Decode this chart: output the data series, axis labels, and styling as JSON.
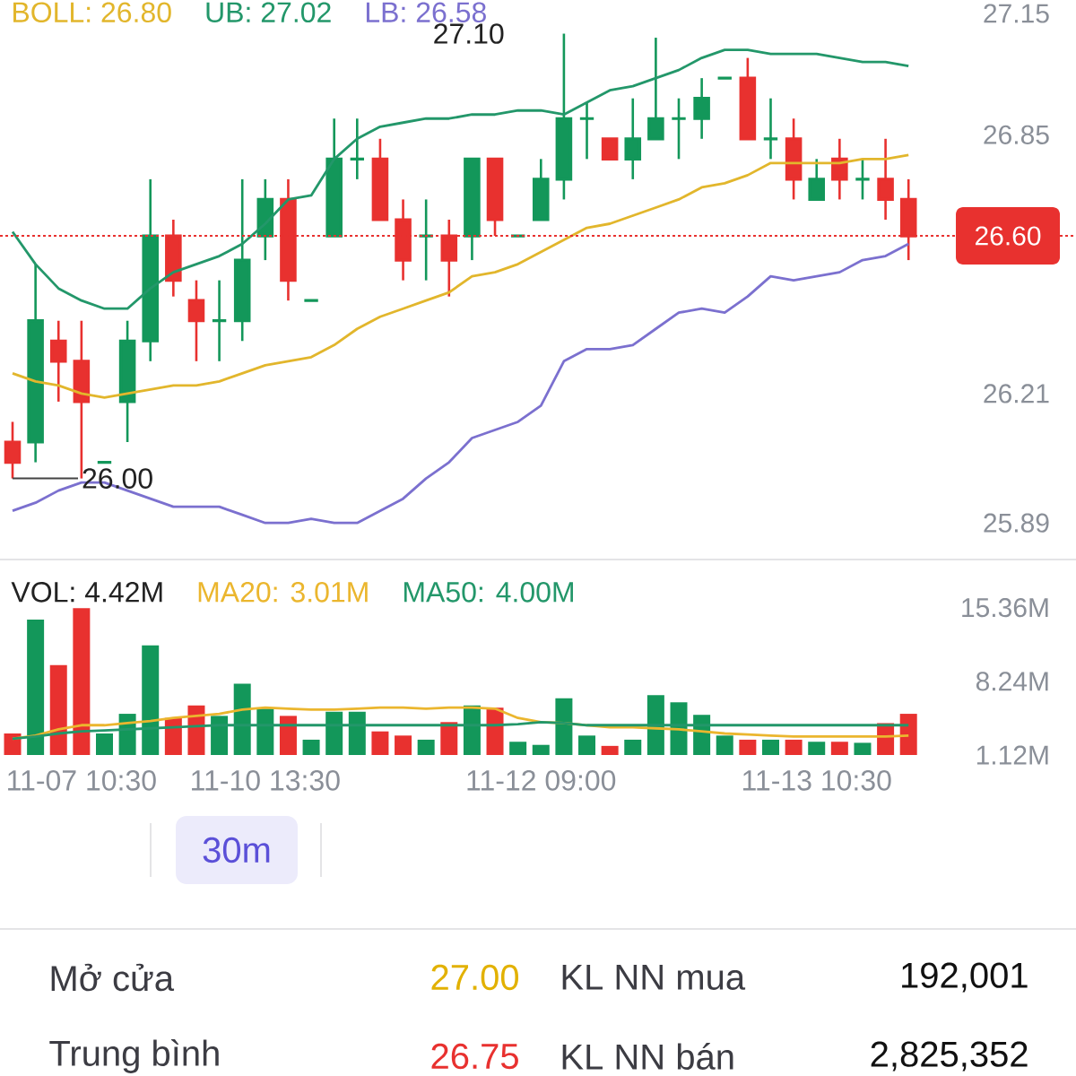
{
  "chart_data": [
    {
      "type": "candlestick",
      "tick_labels": "y",
      "legend": "top left",
      "categories": [
        null,
        null,
        null,
        null,
        null,
        null,
        null,
        null,
        null,
        null,
        null,
        null,
        null,
        null,
        null,
        null,
        null,
        null,
        null,
        null,
        null,
        null,
        null,
        null,
        null,
        null,
        null,
        null,
        null,
        null,
        null,
        null,
        null,
        null,
        null,
        null,
        null,
        null,
        null,
        null
      ],
      "ohlc": [
        [
          26.09,
          26.14,
          26.0,
          26.04
        ],
        [
          26.09,
          26.53,
          26.04,
          26.39
        ],
        [
          26.34,
          26.39,
          26.19,
          26.29
        ],
        [
          26.29,
          26.39,
          26.0,
          26.19
        ],
        [
          26.04,
          26.04,
          26.04,
          26.04
        ],
        [
          26.19,
          26.39,
          26.09,
          26.34
        ],
        [
          26.34,
          26.74,
          26.29,
          26.6
        ],
        [
          26.6,
          26.64,
          26.45,
          26.49
        ],
        [
          26.44,
          26.49,
          26.29,
          26.39
        ],
        [
          26.39,
          26.49,
          26.29,
          26.39
        ],
        [
          26.39,
          26.74,
          26.34,
          26.54
        ],
        [
          26.6,
          26.74,
          26.54,
          26.69
        ],
        [
          26.69,
          26.74,
          26.44,
          26.49
        ],
        [
          26.44,
          26.44,
          26.44,
          26.44
        ],
        [
          26.6,
          26.89,
          26.6,
          26.79
        ],
        [
          26.79,
          26.89,
          26.74,
          26.79
        ],
        [
          26.79,
          26.84,
          26.64,
          26.64
        ],
        [
          26.64,
          26.69,
          26.49,
          26.54
        ],
        [
          26.6,
          26.69,
          26.49,
          26.6
        ],
        [
          26.6,
          26.64,
          26.45,
          26.54
        ],
        [
          26.6,
          26.79,
          26.54,
          26.79
        ],
        [
          26.79,
          26.79,
          26.6,
          26.64
        ],
        [
          26.6,
          26.6,
          26.6,
          26.6
        ],
        [
          26.64,
          26.79,
          26.64,
          26.74
        ],
        [
          26.74,
          27.1,
          26.69,
          26.89
        ],
        [
          26.89,
          26.93,
          26.79,
          26.89
        ],
        [
          26.84,
          26.84,
          26.79,
          26.79
        ],
        [
          26.79,
          26.94,
          26.74,
          26.84
        ],
        [
          26.84,
          27.09,
          26.84,
          26.89
        ],
        [
          26.89,
          26.94,
          26.79,
          26.89
        ],
        [
          26.89,
          26.99,
          26.84,
          26.94
        ],
        [
          26.99,
          26.99,
          26.99,
          26.99
        ],
        [
          26.99,
          27.04,
          26.84,
          26.84
        ],
        [
          26.84,
          26.94,
          26.79,
          26.84
        ],
        [
          26.84,
          26.89,
          26.69,
          26.74
        ],
        [
          26.69,
          26.79,
          26.69,
          26.74
        ],
        [
          26.79,
          26.84,
          26.69,
          26.74
        ],
        [
          26.74,
          26.79,
          26.69,
          26.74
        ],
        [
          26.74,
          26.84,
          26.64,
          26.69
        ],
        [
          26.69,
          26.74,
          26.54,
          26.6
        ]
      ],
      "colors": [
        "#e8312f",
        "#13975a",
        "#e8312f",
        "#e8312f",
        "#13975a",
        "#13975a",
        "#13975a",
        "#e8312f",
        "#e8312f",
        "#13975a",
        "#13975a",
        "#13975a",
        "#e8312f",
        "#13975a",
        "#13975a",
        "#13975a",
        "#e8312f",
        "#e8312f",
        "#13975a",
        "#e8312f",
        "#13975a",
        "#e8312f",
        "#13975a",
        "#13975a",
        "#13975a",
        "#13975a",
        "#e8312f",
        "#13975a",
        "#13975a",
        "#13975a",
        "#13975a",
        "#13975a",
        "#e8312f",
        "#13975a",
        "#e8312f",
        "#13975a",
        "#e8312f",
        "#13975a",
        "#e8312f",
        "#e8312f"
      ],
      "series": [
        {
          "type": "line",
          "name": "BOLL: 26.80",
          "color": "#e2b62c",
          "values": [
            26.26,
            26.24,
            26.23,
            26.21,
            26.2,
            26.21,
            26.22,
            26.23,
            26.23,
            26.24,
            26.26,
            26.28,
            26.29,
            26.3,
            26.33,
            26.37,
            26.4,
            26.42,
            26.44,
            26.46,
            26.5,
            26.51,
            26.53,
            26.56,
            26.59,
            26.62,
            26.63,
            26.65,
            26.67,
            26.69,
            26.72,
            26.73,
            26.75,
            26.78,
            26.78,
            26.78,
            26.78,
            26.79,
            26.79,
            26.8
          ]
        },
        {
          "type": "line",
          "name": "UB: 27.02",
          "color": "#23976a",
          "values": [
            26.61,
            26.53,
            26.47,
            26.44,
            26.42,
            26.42,
            26.47,
            26.51,
            26.53,
            26.55,
            26.58,
            26.63,
            26.69,
            26.7,
            26.79,
            26.84,
            26.87,
            26.88,
            26.89,
            26.89,
            26.9,
            26.9,
            26.91,
            26.91,
            26.9,
            26.93,
            26.96,
            26.97,
            26.99,
            27.01,
            27.04,
            27.06,
            27.06,
            27.05,
            27.05,
            27.05,
            27.04,
            27.03,
            27.03,
            27.02
          ]
        },
        {
          "type": "line",
          "name": "LB: 26.58",
          "color": "#7b70cf",
          "values": [
            25.92,
            25.94,
            25.97,
            25.99,
            25.99,
            25.97,
            25.95,
            25.93,
            25.93,
            25.93,
            25.91,
            25.89,
            25.89,
            25.9,
            25.89,
            25.89,
            25.92,
            25.95,
            26.0,
            26.04,
            26.1,
            26.12,
            26.14,
            26.18,
            26.29,
            26.32,
            26.32,
            26.33,
            26.37,
            26.41,
            26.42,
            26.41,
            26.45,
            26.5,
            26.49,
            26.5,
            26.51,
            26.54,
            26.55,
            26.58
          ]
        }
      ],
      "ylim": [
        25.89,
        27.15
      ],
      "yticks": [
        27.15,
        26.85,
        26.21,
        25.89
      ],
      "ref_lines": [
        {
          "axis": "y",
          "value": 26.6,
          "color": "#e8312f",
          "line_style": "dotted"
        }
      ],
      "annotations": [
        "27.10",
        {
          "text": "26.00",
          "y": 26.0
        },
        {
          "text": "26.60",
          "y": 26.6
        }
      ]
    },
    {
      "type": "bar",
      "legend": "top left",
      "categories": [
        null,
        null,
        null,
        "11-07 10:30",
        null,
        null,
        null,
        null,
        null,
        null,
        null,
        "11-10 13:30",
        null,
        null,
        null,
        null,
        null,
        null,
        null,
        null,
        null,
        null,
        null,
        "11-12 09:00",
        null,
        null,
        null,
        null,
        null,
        null,
        null,
        null,
        null,
        null,
        null,
        "11-13 10:30",
        null,
        null,
        null,
        null
      ],
      "series": [
        {
          "name": "VOL: 4.42M",
          "colors": [
            "#e8312f",
            "#13975a",
            "#e8312f",
            "#e8312f",
            "#13975a",
            "#13975a",
            "#13975a",
            "#e8312f",
            "#e8312f",
            "#13975a",
            "#13975a",
            "#13975a",
            "#e8312f",
            "#13975a",
            "#13975a",
            "#13975a",
            "#e8312f",
            "#e8312f",
            "#13975a",
            "#e8312f",
            "#13975a",
            "#e8312f",
            "#13975a",
            "#13975a",
            "#13975a",
            "#13975a",
            "#e8312f",
            "#13975a",
            "#13975a",
            "#13975a",
            "#13975a",
            "#13975a",
            "#e8312f",
            "#13975a",
            "#e8312f",
            "#13975a",
            "#e8312f",
            "#13975a",
            "#e8312f",
            "#e8312f"
          ],
          "values": [
            3.2,
            14.2,
            9.8,
            15.3,
            3.2,
            5.1,
            11.7,
            4.7,
            5.9,
            4.9,
            8.0,
            5.6,
            4.9,
            2.6,
            5.3,
            5.3,
            3.4,
            3.0,
            2.6,
            4.3,
            5.9,
            5.7,
            2.4,
            2.1,
            6.6,
            3.0,
            2.0,
            2.6,
            6.9,
            6.2,
            5.0,
            3.0,
            2.6,
            2.6,
            2.6,
            2.4,
            2.4,
            2.3,
            4.2,
            5.1
          ]
        },
        {
          "type": "line",
          "name": "MA20: 3.01M",
          "color": "#ebb62e",
          "values": [
            2.7,
            3.0,
            3.6,
            4.0,
            4.0,
            4.2,
            4.4,
            4.7,
            4.9,
            5.1,
            5.5,
            5.7,
            5.6,
            5.5,
            5.5,
            5.6,
            5.7,
            5.7,
            5.6,
            5.7,
            5.7,
            5.6,
            4.7,
            4.3,
            4.2,
            4.0,
            3.8,
            3.8,
            3.7,
            3.6,
            3.4,
            3.2,
            3.1,
            3.0,
            2.9,
            2.9,
            2.9,
            2.9,
            2.9,
            3.0
          ]
        },
        {
          "type": "line",
          "name": "MA50: 4.00M",
          "color": "#23976a",
          "values": [
            2.7,
            2.9,
            3.2,
            3.4,
            3.5,
            3.6,
            3.7,
            3.8,
            3.9,
            4.0,
            4.0,
            4.0,
            4.0,
            4.0,
            4.0,
            4.0,
            4.0,
            4.0,
            4.0,
            4.0,
            4.0,
            4.0,
            4.1,
            4.3,
            4.2,
            4.0,
            4.0,
            4.0,
            4.0,
            4.0,
            4.0,
            4.0,
            4.0,
            4.0,
            4.0,
            4.0,
            4.0,
            4.0,
            4.0,
            4.0
          ]
        }
      ],
      "ylim": [
        1.12,
        15.36
      ],
      "yticks": [
        {
          "value": 15.36,
          "label": "15.36M"
        },
        {
          "value": 8.24,
          "label": "8.24M"
        },
        {
          "value": 1.12,
          "label": "1.12M"
        }
      ]
    },
    {
      "type": "other",
      "annotations": [
        "30m",
        "Mở cửa",
        "27.00",
        "KL NN mua",
        "192,001",
        "Trung bình",
        "26.75",
        "KL NN bán",
        "2,825,352"
      ]
    }
  ]
}
